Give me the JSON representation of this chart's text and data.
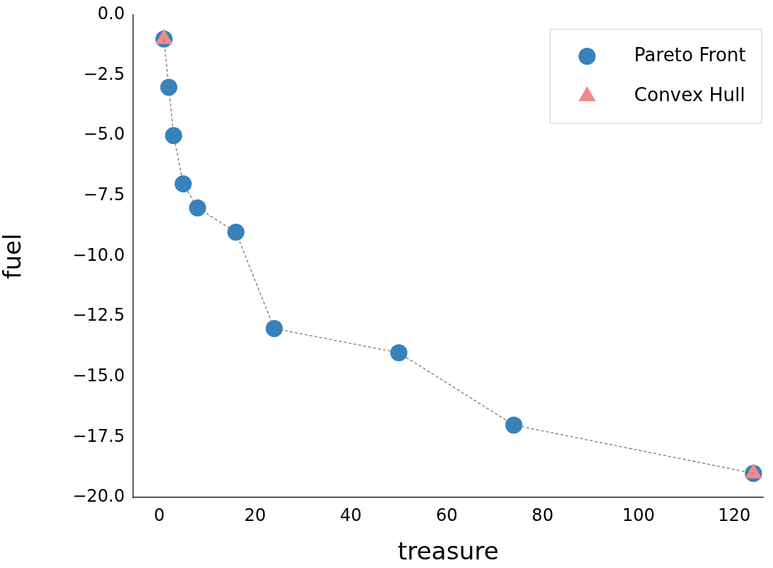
{
  "chart_data": {
    "type": "scatter",
    "xlabel": "treasure",
    "ylabel": "fuel",
    "xlim": [
      -5.4,
      126
    ],
    "xticks": [
      0,
      20,
      40,
      60,
      80,
      100,
      120
    ],
    "ylim": [
      -20,
      0
    ],
    "yticks": [
      {
        "value": -20,
        "label": "−20.0"
      },
      {
        "value": -17.5,
        "label": "−17.5"
      },
      {
        "value": -15,
        "label": "−15.0"
      },
      {
        "value": -12.5,
        "label": "−12.5"
      },
      {
        "value": -10,
        "label": "−10.0"
      },
      {
        "value": -7.5,
        "label": "−7.5"
      },
      {
        "value": -5,
        "label": "−5.0"
      },
      {
        "value": -2.5,
        "label": "−2.5"
      },
      {
        "value": 0,
        "label": "0.0"
      }
    ],
    "grid": false,
    "legend": "top right",
    "series": [
      {
        "type": "line",
        "color": "#7a7a7a",
        "line_style": "dashed",
        "marker": "none",
        "x": [
          1,
          2,
          3,
          5,
          8,
          16,
          24,
          50,
          74,
          124
        ],
        "values": [
          -1,
          -3,
          -5,
          -7,
          -8,
          -9,
          -13,
          -14,
          -17,
          -19
        ]
      },
      {
        "name": "Pareto Front",
        "color": "#3582bd",
        "marker": "circle",
        "x": [
          1,
          2,
          3,
          5,
          8,
          16,
          24,
          50,
          74,
          124
        ],
        "values": [
          -1,
          -3,
          -5,
          -7,
          -8,
          -9,
          -13,
          -14,
          -17,
          -19
        ]
      },
      {
        "name": "Convex Hull",
        "color": "#f08a8a",
        "marker": "triangle",
        "x": [
          1,
          124
        ],
        "values": [
          -1,
          -19
        ]
      }
    ]
  }
}
